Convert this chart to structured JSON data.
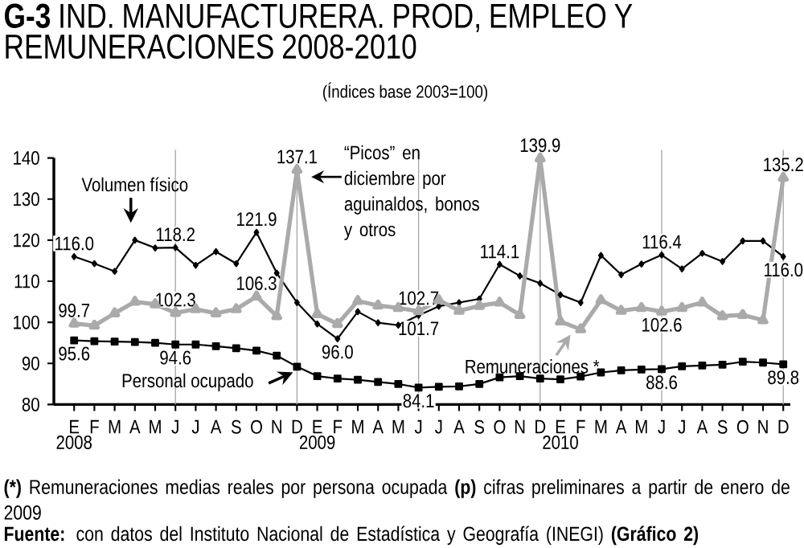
{
  "chart_data": {
    "type": "line",
    "title": "**G-3** IND. MANUFACTURERA. PROD, EMPLEO Y REMUNERACIONES 2008-2010",
    "subtitle": "(Índices base 2003=100)",
    "categories": [
      "E",
      "F",
      "M",
      "A",
      "M",
      "J",
      "J",
      "A",
      "S",
      "O",
      "N",
      "D",
      "E",
      "F",
      "M",
      "A",
      "M",
      "J",
      "J",
      "A",
      "S",
      "O",
      "N",
      "D",
      "E",
      "F",
      "M",
      "A",
      "M",
      "J",
      "J",
      "A",
      "S",
      "O",
      "N",
      "D"
    ],
    "series": [
      {
        "name": "Volumen físico",
        "color": "#000000",
        "marker": "diamond",
        "values": [
          116.0,
          114.3,
          112.4,
          120.0,
          118.1,
          118.2,
          113.9,
          117.2,
          114.3,
          121.9,
          112.0,
          104.8,
          99.6,
          96.0,
          102.6,
          99.9,
          99.3,
          101.7,
          103.9,
          104.8,
          105.7,
          114.1,
          111.3,
          109.5,
          106.7,
          104.8,
          116.3,
          111.6,
          114.2,
          116.4,
          113.0,
          116.8,
          114.8,
          119.8,
          119.8,
          116.0
        ],
        "value_labels": [
          "116.0",
          null,
          null,
          null,
          null,
          "118.2",
          null,
          null,
          null,
          "121.9",
          null,
          null,
          null,
          "96.0",
          null,
          null,
          null,
          "101.7",
          null,
          null,
          null,
          "114.1",
          null,
          null,
          null,
          null,
          null,
          null,
          null,
          "116.4",
          null,
          null,
          null,
          null,
          null,
          "116.0"
        ]
      },
      {
        "name": "Remuneraciones *",
        "color": "#aaaaaa",
        "marker": "triangle",
        "values": [
          99.7,
          99.2,
          102.2,
          105.0,
          104.4,
          102.3,
          103.2,
          102.2,
          103.2,
          106.3,
          101.5,
          137.1,
          102.0,
          99.6,
          105.2,
          104.1,
          103.5,
          102.7,
          105.4,
          102.8,
          104.0,
          104.8,
          101.8,
          139.9,
          100.2,
          98.3,
          105.4,
          102.8,
          103.5,
          102.6,
          103.5,
          104.8,
          101.5,
          101.8,
          100.5,
          135.2
        ],
        "value_labels": [
          "99.7",
          null,
          null,
          null,
          null,
          "102.3",
          null,
          null,
          null,
          "106.3",
          null,
          "137.1",
          null,
          null,
          null,
          null,
          null,
          "102.7",
          null,
          null,
          null,
          null,
          null,
          "139.9",
          null,
          null,
          null,
          null,
          null,
          "102.6",
          null,
          null,
          null,
          null,
          null,
          "135.2"
        ]
      },
      {
        "name": "Personal ocupado",
        "color": "#000000",
        "marker": "square",
        "values": [
          95.6,
          95.4,
          95.3,
          95.2,
          95.0,
          94.6,
          94.6,
          94.2,
          93.7,
          93.1,
          91.9,
          89.2,
          86.9,
          86.3,
          86.0,
          85.5,
          85.0,
          84.1,
          84.3,
          84.4,
          85.0,
          86.6,
          86.9,
          86.3,
          86.1,
          86.8,
          87.8,
          88.3,
          88.5,
          88.6,
          89.3,
          89.5,
          89.7,
          90.4,
          90.2,
          89.8
        ],
        "value_labels": [
          "95.6",
          null,
          null,
          null,
          null,
          "94.6",
          null,
          null,
          null,
          null,
          null,
          null,
          null,
          null,
          null,
          null,
          null,
          "84.1",
          null,
          null,
          null,
          null,
          null,
          null,
          null,
          null,
          null,
          null,
          null,
          "88.6",
          null,
          null,
          null,
          null,
          null,
          "89.8"
        ]
      }
    ],
    "ylim": [
      80,
      140
    ],
    "yticks": [
      80,
      90,
      100,
      110,
      120,
      130,
      140
    ],
    "grid": "x",
    "line_style": "solid",
    "annotations": [
      "2008",
      "2009",
      "2010",
      "“Picos” en diciembre por aguinaldos, bonos y otros",
      "**(*)** Remuneraciones medias reales por persona ocupada **(p)** cifras preliminares a  partir de enero de 2009",
      "**Fuente:** con datos del Instituto Nacional de Estadística y Geografía (INEGI) **(Gráfico 2)**"
    ]
  }
}
